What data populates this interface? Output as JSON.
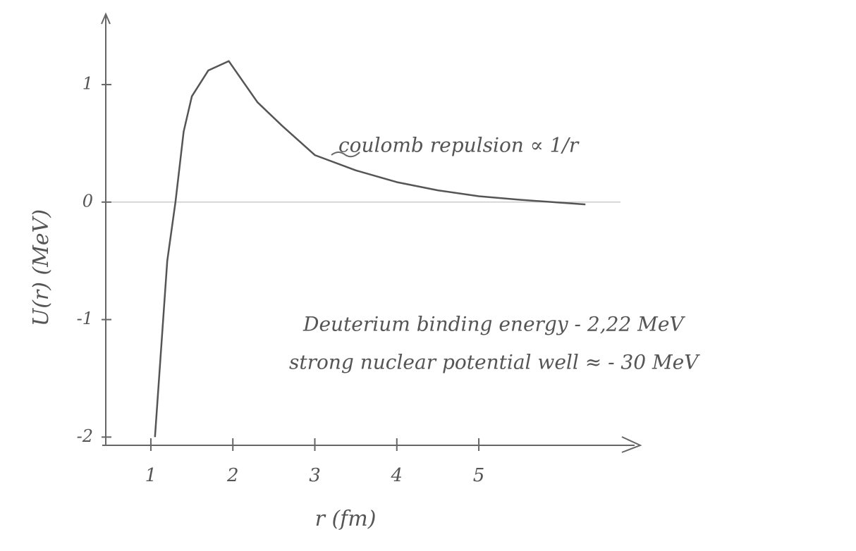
{
  "chart_data": {
    "type": "line",
    "xlabel": "r (fm)",
    "ylabel": "U(r) (MeV)",
    "x": [
      1.05,
      1.2,
      1.3,
      1.4,
      1.5,
      1.7,
      1.95,
      2.3,
      2.6,
      3,
      3.5,
      4,
      4.5,
      5,
      5.5,
      6.3
    ],
    "series": [
      {
        "color": "#555555",
        "values": [
          -2,
          -0.5,
          0,
          0.6,
          0.9,
          1.12,
          1.2,
          0.85,
          0.65,
          0.4,
          0.27,
          0.17,
          0.1,
          0.05,
          0.02,
          -0.02
        ]
      }
    ],
    "xlim": [
      0.45,
      6.9
    ],
    "ylim": [
      -2.07,
      1.6
    ],
    "xticks": [
      1,
      2,
      3,
      4,
      5
    ],
    "yticks": [
      -2,
      -1,
      0,
      1
    ],
    "zero_line": true,
    "annotations": [
      "coulomb repulsion ∝ 1/r",
      "Deuterium binding energy - 2,22 MeV",
      "strong nuclear potential well ≈ - 30 MeV"
    ]
  }
}
